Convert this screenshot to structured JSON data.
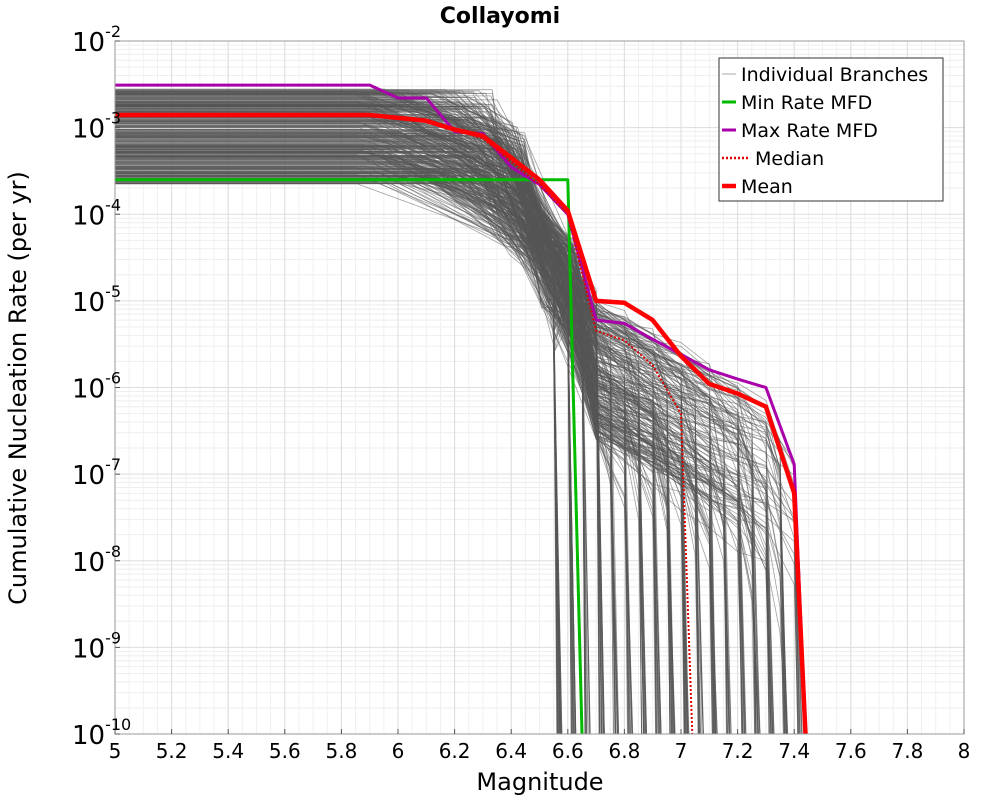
{
  "chart_data": {
    "type": "line",
    "title": "Collayomi",
    "xlabel": "Magnitude",
    "ylabel": "Cumulative Nucleation Rate (per yr)",
    "xlim": [
      5,
      8
    ],
    "ylim": [
      1e-10,
      0.01
    ],
    "yscale": "log",
    "grid": true,
    "legend_position": "top-right",
    "x_ticks": [
      "5",
      "5.2",
      "5.4",
      "5.6",
      "5.8",
      "6",
      "6.2",
      "6.4",
      "6.6",
      "6.8",
      "7",
      "7.2",
      "7.4",
      "7.6",
      "7.8",
      "8"
    ],
    "y_ticks": [
      {
        "base": "10",
        "exp": "-10",
        "value": 1e-10
      },
      {
        "base": "10",
        "exp": "-9",
        "value": 1e-09
      },
      {
        "base": "10",
        "exp": "-8",
        "value": 1e-08
      },
      {
        "base": "10",
        "exp": "-7",
        "value": 1e-07
      },
      {
        "base": "10",
        "exp": "-6",
        "value": 1e-06
      },
      {
        "base": "10",
        "exp": "-5",
        "value": 1e-05
      },
      {
        "base": "10",
        "exp": "-4",
        "value": 0.0001
      },
      {
        "base": "10",
        "exp": "-3",
        "value": 0.001
      },
      {
        "base": "10",
        "exp": "-2",
        "value": 0.01
      }
    ],
    "series": [
      {
        "name": "Min Rate MFD",
        "color": "#00bb00",
        "style": "solid",
        "x": [
          5.0,
          6.6,
          6.65
        ],
        "y": [
          0.00025,
          0.00025,
          1e-10
        ]
      },
      {
        "name": "Max Rate MFD",
        "color": "#aa00aa",
        "style": "solid",
        "x": [
          5.0,
          5.9,
          6.0,
          6.1,
          6.2,
          6.3,
          6.4,
          6.5,
          6.6,
          6.7,
          6.8,
          6.9,
          7.0,
          7.1,
          7.2,
          7.3,
          7.4,
          7.44
        ],
        "y": [
          0.0031,
          0.0031,
          0.0022,
          0.0022,
          0.0009,
          0.00085,
          0.00035,
          0.00022,
          0.0001,
          6e-06,
          5.5e-06,
          3.6e-06,
          2.4e-06,
          1.6e-06,
          1.25e-06,
          1e-06,
          1.3e-07,
          1e-10
        ]
      },
      {
        "name": "Median",
        "color": "#dd0000",
        "style": "dotted",
        "x": [
          5.0,
          5.9,
          6.1,
          6.2,
          6.3,
          6.4,
          6.5,
          6.6,
          6.7,
          6.8,
          6.9,
          7.0,
          7.04
        ],
        "y": [
          0.0014,
          0.0014,
          0.0012,
          0.00095,
          0.00075,
          0.0004,
          0.00022,
          0.0001,
          4.5e-06,
          3.5e-06,
          1.8e-06,
          5e-07,
          1e-10
        ]
      },
      {
        "name": "Mean",
        "color": "#ff0000",
        "style": "solid",
        "x": [
          5.0,
          5.9,
          6.1,
          6.2,
          6.3,
          6.4,
          6.5,
          6.6,
          6.7,
          6.8,
          6.9,
          7.0,
          7.1,
          7.2,
          7.3,
          7.4,
          7.44
        ],
        "y": [
          0.0014,
          0.0014,
          0.0012,
          0.00095,
          0.0008,
          0.00045,
          0.00025,
          0.00011,
          1e-05,
          9.5e-06,
          6e-06,
          2.3e-06,
          1.1e-06,
          8.5e-07,
          6e-07,
          6e-08,
          1e-10
        ]
      }
    ],
    "individual_branches": {
      "name": "Individual Branches",
      "color": "#555555",
      "description_count": 400
    },
    "legend": [
      {
        "label": "Individual Branches",
        "color": "#aaaaaa",
        "style": "thin"
      },
      {
        "label": "Min Rate MFD",
        "color": "#00bb00",
        "style": "solid"
      },
      {
        "label": "Max Rate MFD",
        "color": "#aa00aa",
        "style": "solid"
      },
      {
        "label": "Median",
        "color": "#dd0000",
        "style": "dotted"
      },
      {
        "label": "Mean",
        "color": "#ff0000",
        "style": "thick"
      }
    ]
  }
}
